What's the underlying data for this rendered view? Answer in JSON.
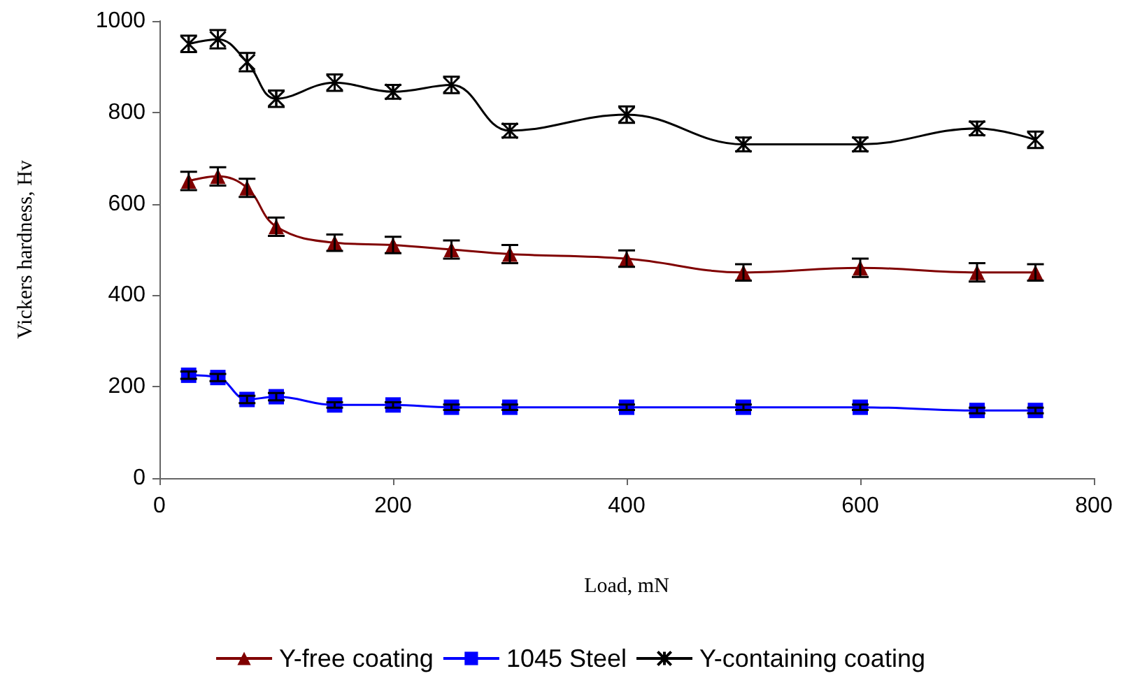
{
  "chart_data": {
    "type": "line",
    "xlabel": "Load, mN",
    "ylabel": "Vickers hardness, Hv",
    "x": [
      25,
      50,
      75,
      100,
      150,
      200,
      250,
      300,
      400,
      500,
      600,
      700,
      750
    ],
    "xlim": [
      0,
      800
    ],
    "xticks": [
      0,
      200,
      400,
      600,
      800
    ],
    "ylim": [
      0,
      1000
    ],
    "yticks": [
      0,
      200,
      400,
      600,
      800,
      1000
    ],
    "grid": false,
    "legend": "bottom",
    "line_style": "solid",
    "series": [
      {
        "name": "Y-free coating",
        "color": "#800000",
        "marker": "triangle",
        "values": [
          650,
          660,
          635,
          550,
          515,
          510,
          500,
          490,
          480,
          450,
          460,
          450,
          450
        ],
        "errors": [
          20,
          20,
          20,
          20,
          18,
          18,
          20,
          20,
          18,
          18,
          20,
          20,
          18
        ]
      },
      {
        "name": "1045 Steel",
        "color": "#0000ff",
        "marker": "square",
        "values": [
          225,
          220,
          172,
          178,
          160,
          160,
          155,
          155,
          155,
          155,
          155,
          148,
          148
        ],
        "errors": [
          8,
          8,
          8,
          8,
          6,
          6,
          6,
          6,
          6,
          6,
          6,
          6,
          6
        ]
      },
      {
        "name": "Y-containing coating",
        "color": "#000000",
        "marker": "cross",
        "values": [
          950,
          960,
          910,
          830,
          865,
          845,
          860,
          760,
          795,
          730,
          730,
          765,
          740
        ],
        "errors": [
          18,
          20,
          20,
          18,
          18,
          15,
          18,
          15,
          18,
          15,
          15,
          15,
          18
        ]
      }
    ]
  }
}
